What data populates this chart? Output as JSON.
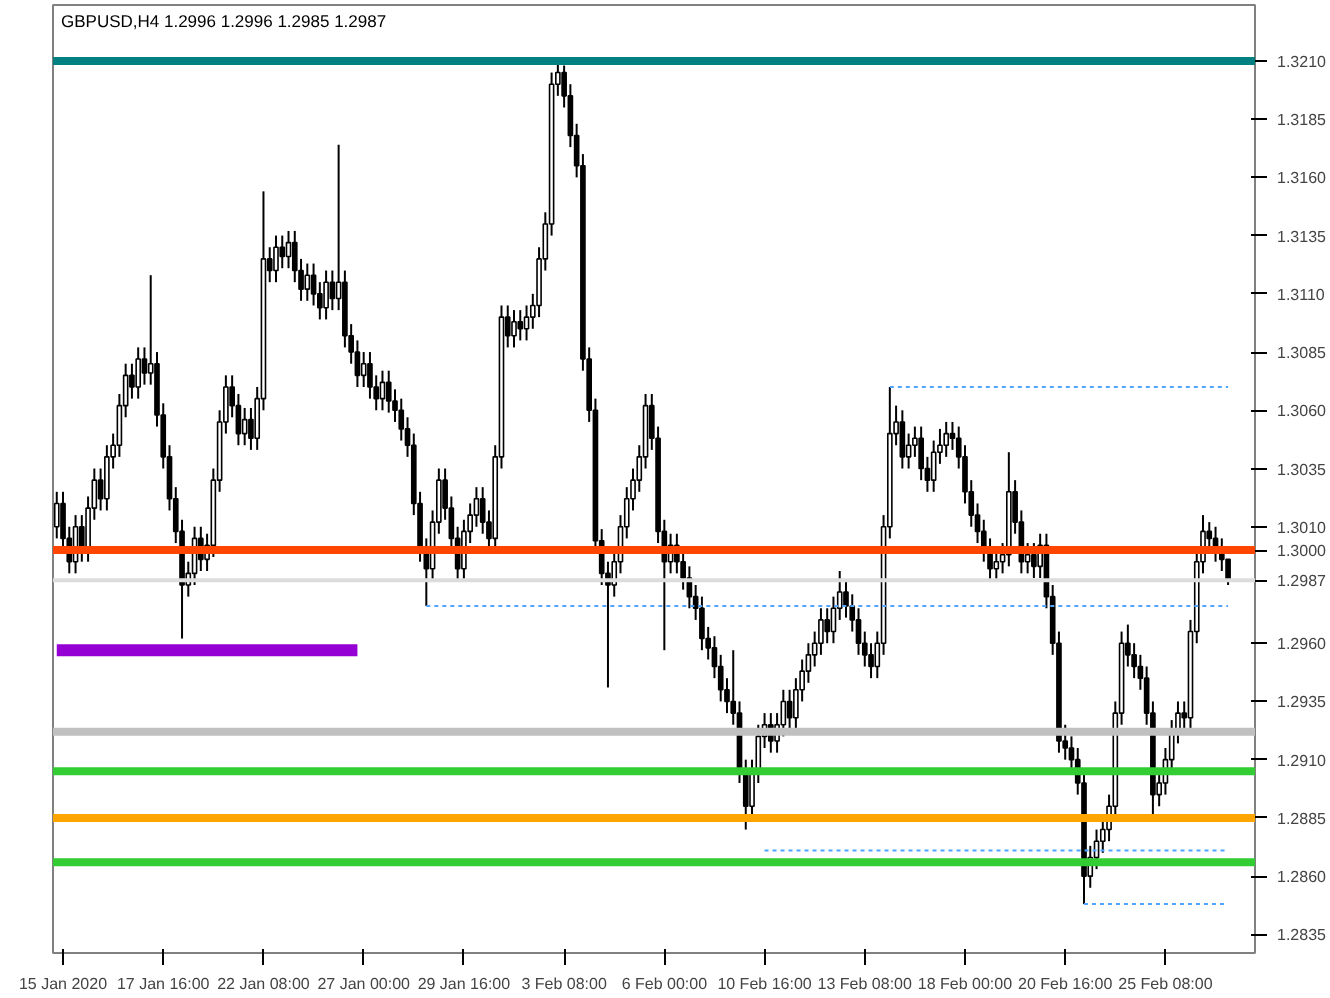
{
  "chart_data": {
    "type": "candlestick",
    "title": "GBPUSD,H4  1.2996 1.2996 1.2985 1.2987",
    "categories": [
      null,
      "15 Jan 2020",
      null,
      null,
      null,
      null,
      null,
      null,
      null,
      null,
      null,
      null,
      null,
      null,
      null,
      null,
      null,
      "17 Jan 16:00",
      null,
      null,
      null,
      null,
      null,
      null,
      null,
      null,
      null,
      null,
      null,
      null,
      null,
      null,
      null,
      "22 Jan 08:00",
      null,
      null,
      null,
      null,
      null,
      null,
      null,
      null,
      null,
      null,
      null,
      null,
      null,
      null,
      null,
      "27 Jan 00:00",
      null,
      null,
      null,
      null,
      null,
      null,
      null,
      null,
      null,
      null,
      null,
      null,
      null,
      null,
      null,
      "29 Jan 16:00",
      null,
      null,
      null,
      null,
      null,
      null,
      null,
      null,
      null,
      null,
      null,
      null,
      null,
      null,
      null,
      "3 Feb 08:00",
      null,
      null,
      null,
      null,
      null,
      null,
      null,
      null,
      null,
      null,
      null,
      null,
      null,
      null,
      null,
      "6 Feb 00:00",
      null,
      null,
      null,
      null,
      null,
      null,
      null,
      null,
      null,
      null,
      null,
      null,
      null,
      null,
      null,
      "10 Feb 16:00",
      null,
      null,
      null,
      null,
      null,
      null,
      null,
      null,
      null,
      null,
      null,
      null,
      null,
      null,
      null,
      "13 Feb 08:00",
      null,
      null,
      null,
      null,
      null,
      null,
      null,
      null,
      null,
      null,
      null,
      null,
      null,
      null,
      null,
      "18 Feb 00:00",
      null,
      null,
      null,
      null,
      null,
      null,
      null,
      null,
      null,
      null,
      null,
      null,
      null,
      null,
      null,
      "20 Feb 16:00",
      null,
      null,
      null,
      null,
      null,
      null,
      null,
      null,
      null,
      null,
      null,
      null,
      null,
      null,
      null,
      "25 Feb 08:00",
      null,
      null,
      null,
      null,
      null,
      null,
      null,
      null,
      null,
      null
    ],
    "ohlc": [
      [
        1.301,
        1.3025,
        1.3005,
        1.302
      ],
      [
        1.302,
        1.3025,
        1.3,
        1.3005
      ],
      [
        1.3005,
        1.301,
        1.299,
        1.2995
      ],
      [
        1.2995,
        1.3015,
        1.299,
        1.301
      ],
      [
        1.301,
        1.3015,
        1.2995,
        1.3
      ],
      [
        1.3,
        1.3023,
        1.2995,
        1.3018
      ],
      [
        1.3018,
        1.3035,
        1.3013,
        1.303
      ],
      [
        1.303,
        1.3035,
        1.3017,
        1.3022
      ],
      [
        1.3022,
        1.3045,
        1.3017,
        1.304
      ],
      [
        1.304,
        1.305,
        1.3035,
        1.3045
      ],
      [
        1.3045,
        1.3067,
        1.304,
        1.3062
      ],
      [
        1.3062,
        1.308,
        1.3057,
        1.3075
      ],
      [
        1.3075,
        1.308,
        1.3065,
        1.307
      ],
      [
        1.307,
        1.3087,
        1.3065,
        1.3082
      ],
      [
        1.3082,
        1.3087,
        1.3071,
        1.3076
      ],
      [
        1.3076,
        1.3118,
        1.3071,
        1.308
      ],
      [
        1.308,
        1.3085,
        1.3053,
        1.3058
      ],
      [
        1.3058,
        1.3063,
        1.3035,
        1.304
      ],
      [
        1.304,
        1.3045,
        1.3017,
        1.3022
      ],
      [
        1.3022,
        1.3027,
        1.3003,
        1.3008
      ],
      [
        1.3008,
        1.3013,
        1.2962,
        1.2985
      ],
      [
        1.2985,
        1.2995,
        1.298,
        1.299
      ],
      [
        1.299,
        1.301,
        1.2985,
        1.3005
      ],
      [
        1.3005,
        1.301,
        1.2991,
        1.2996
      ],
      [
        1.2996,
        1.3007,
        1.2991,
        1.3002
      ],
      [
        1.3002,
        1.3035,
        1.2997,
        1.303
      ],
      [
        1.303,
        1.306,
        1.3025,
        1.3055
      ],
      [
        1.3055,
        1.3075,
        1.305,
        1.307
      ],
      [
        1.307,
        1.3075,
        1.3057,
        1.3062
      ],
      [
        1.3062,
        1.3067,
        1.3045,
        1.305
      ],
      [
        1.305,
        1.3061,
        1.3045,
        1.3056
      ],
      [
        1.3056,
        1.3061,
        1.3043,
        1.3048
      ],
      [
        1.3048,
        1.307,
        1.3043,
        1.3065
      ],
      [
        1.3065,
        1.3154,
        1.306,
        1.3125
      ],
      [
        1.3125,
        1.313,
        1.3115,
        1.312
      ],
      [
        1.312,
        1.3135,
        1.3115,
        1.313
      ],
      [
        1.313,
        1.3135,
        1.3121,
        1.3126
      ],
      [
        1.3126,
        1.3137,
        1.3121,
        1.3132
      ],
      [
        1.3132,
        1.3137,
        1.3115,
        1.312
      ],
      [
        1.312,
        1.3125,
        1.3107,
        1.3112
      ],
      [
        1.3112,
        1.3123,
        1.3107,
        1.3118
      ],
      [
        1.3118,
        1.3123,
        1.3105,
        1.311
      ],
      [
        1.311,
        1.3115,
        1.3099,
        1.3104
      ],
      [
        1.3104,
        1.312,
        1.3099,
        1.3115
      ],
      [
        1.3115,
        1.312,
        1.3103,
        1.3108
      ],
      [
        1.3108,
        1.3174,
        1.3103,
        1.3115
      ],
      [
        1.3115,
        1.312,
        1.3087,
        1.3092
      ],
      [
        1.3092,
        1.3097,
        1.308,
        1.3085
      ],
      [
        1.3085,
        1.309,
        1.307,
        1.3075
      ],
      [
        1.3075,
        1.3085,
        1.307,
        1.308
      ],
      [
        1.308,
        1.3085,
        1.3065,
        1.307
      ],
      [
        1.307,
        1.3075,
        1.306,
        1.3065
      ],
      [
        1.3065,
        1.3077,
        1.306,
        1.3072
      ],
      [
        1.3072,
        1.3077,
        1.3059,
        1.3064
      ],
      [
        1.3064,
        1.3069,
        1.3055,
        1.306
      ],
      [
        1.306,
        1.3065,
        1.3047,
        1.3052
      ],
      [
        1.3052,
        1.3057,
        1.304,
        1.3045
      ],
      [
        1.3045,
        1.305,
        1.3015,
        1.302
      ],
      [
        1.302,
        1.3025,
        1.2995,
        1.3
      ],
      [
        1.3,
        1.3005,
        1.2976,
        1.2992
      ],
      [
        1.2992,
        1.3017,
        1.2987,
        1.3012
      ],
      [
        1.3012,
        1.3035,
        1.3007,
        1.303
      ],
      [
        1.303,
        1.3035,
        1.3013,
        1.3018
      ],
      [
        1.3018,
        1.3023,
        1.3,
        1.3005
      ],
      [
        1.3005,
        1.301,
        1.2987,
        1.2992
      ],
      [
        1.2992,
        1.3013,
        1.2987,
        1.3008
      ],
      [
        1.3008,
        1.302,
        1.3003,
        1.3015
      ],
      [
        1.3015,
        1.3027,
        1.301,
        1.3022
      ],
      [
        1.3022,
        1.3027,
        1.3007,
        1.3012
      ],
      [
        1.3012,
        1.3017,
        1.3,
        1.3005
      ],
      [
        1.3005,
        1.3045,
        1.3,
        1.304
      ],
      [
        1.304,
        1.3105,
        1.3035,
        1.31
      ],
      [
        1.31,
        1.3105,
        1.3087,
        1.3092
      ],
      [
        1.3092,
        1.3103,
        1.3087,
        1.3098
      ],
      [
        1.3098,
        1.3103,
        1.309,
        1.3095
      ],
      [
        1.3095,
        1.3105,
        1.309,
        1.31
      ],
      [
        1.31,
        1.311,
        1.3095,
        1.3105
      ],
      [
        1.3105,
        1.313,
        1.31,
        1.3125
      ],
      [
        1.3125,
        1.3145,
        1.312,
        1.314
      ],
      [
        1.314,
        1.3205,
        1.3135,
        1.32
      ],
      [
        1.32,
        1.321,
        1.3195,
        1.3205
      ],
      [
        1.3205,
        1.3208,
        1.319,
        1.3195
      ],
      [
        1.3195,
        1.32,
        1.3173,
        1.3178
      ],
      [
        1.3178,
        1.3183,
        1.316,
        1.3165
      ],
      [
        1.3165,
        1.317,
        1.3077,
        1.3082
      ],
      [
        1.3082,
        1.3087,
        1.3055,
        1.306
      ],
      [
        1.306,
        1.3065,
        1.2999,
        1.3004
      ],
      [
        1.3004,
        1.3009,
        1.2985,
        1.299
      ],
      [
        1.299,
        1.2995,
        1.2941,
        1.2985
      ],
      [
        1.2985,
        1.3,
        1.298,
        1.2995
      ],
      [
        1.2995,
        1.3015,
        1.299,
        1.301
      ],
      [
        1.301,
        1.3027,
        1.3005,
        1.3022
      ],
      [
        1.3022,
        1.3035,
        1.3017,
        1.303
      ],
      [
        1.303,
        1.3045,
        1.3025,
        1.304
      ],
      [
        1.304,
        1.3067,
        1.3035,
        1.3062
      ],
      [
        1.3062,
        1.3067,
        1.3043,
        1.3048
      ],
      [
        1.3048,
        1.3053,
        1.3003,
        1.3008
      ],
      [
        1.3008,
        1.3013,
        1.2957,
        1.2995
      ],
      [
        1.2995,
        1.3007,
        1.299,
        1.3002
      ],
      [
        1.3002,
        1.3007,
        1.299,
        1.2995
      ],
      [
        1.2995,
        1.3,
        1.2983,
        1.2988
      ],
      [
        1.2988,
        1.2993,
        1.2975,
        1.298
      ],
      [
        1.298,
        1.2985,
        1.297,
        1.2975
      ],
      [
        1.2975,
        1.298,
        1.2957,
        1.2962
      ],
      [
        1.2962,
        1.2967,
        1.2953,
        1.2958
      ],
      [
        1.2958,
        1.2963,
        1.2945,
        1.295
      ],
      [
        1.295,
        1.2955,
        1.2935,
        1.294
      ],
      [
        1.294,
        1.2945,
        1.293,
        1.2935
      ],
      [
        1.2935,
        1.2957,
        1.2925,
        1.293
      ],
      [
        1.293,
        1.2935,
        1.29,
        1.2905
      ],
      [
        1.2905,
        1.291,
        1.288,
        1.289
      ],
      [
        1.289,
        1.291,
        1.2885,
        1.2905
      ],
      [
        1.2905,
        1.2925,
        1.29,
        1.292
      ],
      [
        1.292,
        1.293,
        1.2915,
        1.2925
      ],
      [
        1.2925,
        1.293,
        1.2913,
        1.2918
      ],
      [
        1.2918,
        1.293,
        1.2913,
        1.2925
      ],
      [
        1.2925,
        1.294,
        1.292,
        1.2935
      ],
      [
        1.2935,
        1.294,
        1.2923,
        1.2928
      ],
      [
        1.2928,
        1.2945,
        1.2923,
        1.294
      ],
      [
        1.294,
        1.2953,
        1.2935,
        1.2948
      ],
      [
        1.2948,
        1.296,
        1.2943,
        1.2955
      ],
      [
        1.2955,
        1.2965,
        1.295,
        1.296
      ],
      [
        1.296,
        1.2975,
        1.2955,
        1.297
      ],
      [
        1.297,
        1.2975,
        1.296,
        1.2965
      ],
      [
        1.2965,
        1.298,
        1.296,
        1.2975
      ],
      [
        1.2975,
        1.2991,
        1.297,
        1.2982
      ],
      [
        1.2982,
        1.2987,
        1.2971,
        1.2976
      ],
      [
        1.2976,
        1.2981,
        1.2965,
        1.297
      ],
      [
        1.297,
        1.2975,
        1.2955,
        1.296
      ],
      [
        1.296,
        1.2965,
        1.295,
        1.2955
      ],
      [
        1.2955,
        1.296,
        1.2945,
        1.295
      ],
      [
        1.295,
        1.2965,
        1.2945,
        1.296
      ],
      [
        1.296,
        1.3015,
        1.2955,
        1.301
      ],
      [
        1.301,
        1.307,
        1.3005,
        1.305
      ],
      [
        1.305,
        1.3062,
        1.3045,
        1.3055
      ],
      [
        1.3055,
        1.306,
        1.3035,
        1.304
      ],
      [
        1.304,
        1.305,
        1.3035,
        1.3045
      ],
      [
        1.3045,
        1.3053,
        1.304,
        1.3048
      ],
      [
        1.3048,
        1.3053,
        1.303,
        1.3035
      ],
      [
        1.3035,
        1.304,
        1.3025,
        1.303
      ],
      [
        1.303,
        1.3047,
        1.3025,
        1.3042
      ],
      [
        1.3042,
        1.3052,
        1.3037,
        1.3045
      ],
      [
        1.3045,
        1.3055,
        1.304,
        1.305
      ],
      [
        1.305,
        1.3055,
        1.3043,
        1.3048
      ],
      [
        1.3048,
        1.3053,
        1.3035,
        1.304
      ],
      [
        1.304,
        1.3045,
        1.302,
        1.3025
      ],
      [
        1.3025,
        1.303,
        1.301,
        1.3015
      ],
      [
        1.3015,
        1.302,
        1.3003,
        1.3008
      ],
      [
        1.3008,
        1.3013,
        1.2995,
        1.3
      ],
      [
        1.3,
        1.3005,
        1.2987,
        1.2992
      ],
      [
        1.2992,
        1.3,
        1.2987,
        1.2995
      ],
      [
        1.2995,
        1.3003,
        1.299,
        1.2998
      ],
      [
        1.2998,
        1.3042,
        1.2993,
        1.3025
      ],
      [
        1.3025,
        1.303,
        1.3007,
        1.3012
      ],
      [
        1.3012,
        1.3017,
        1.299,
        1.2995
      ],
      [
        1.2995,
        1.3003,
        1.299,
        1.2998
      ],
      [
        1.2998,
        1.3003,
        1.2988,
        1.2993
      ],
      [
        1.2993,
        1.3007,
        1.2988,
        1.3002
      ],
      [
        1.3002,
        1.3007,
        1.2975,
        1.298
      ],
      [
        1.298,
        1.2985,
        1.2955,
        1.296
      ],
      [
        1.296,
        1.2965,
        1.2913,
        1.2918
      ],
      [
        1.2918,
        1.2925,
        1.291,
        1.2915
      ],
      [
        1.2915,
        1.292,
        1.2905,
        1.291
      ],
      [
        1.291,
        1.2915,
        1.2895,
        1.29
      ],
      [
        1.29,
        1.2905,
        1.2848,
        1.286
      ],
      [
        1.286,
        1.2873,
        1.2855,
        1.2868
      ],
      [
        1.2868,
        1.288,
        1.2863,
        1.2875
      ],
      [
        1.2875,
        1.2885,
        1.287,
        1.288
      ],
      [
        1.288,
        1.2895,
        1.2875,
        1.289
      ],
      [
        1.289,
        1.2935,
        1.2885,
        1.293
      ],
      [
        1.293,
        1.2965,
        1.2925,
        1.296
      ],
      [
        1.296,
        1.2968,
        1.295,
        1.2955
      ],
      [
        1.2955,
        1.296,
        1.2945,
        1.295
      ],
      [
        1.295,
        1.2955,
        1.294,
        1.2945
      ],
      [
        1.2945,
        1.295,
        1.2925,
        1.293
      ],
      [
        1.293,
        1.2935,
        1.2885,
        1.2895
      ],
      [
        1.2895,
        1.2905,
        1.289,
        1.29
      ],
      [
        1.29,
        1.2915,
        1.2895,
        1.291
      ],
      [
        1.291,
        1.2927,
        1.2905,
        1.2922
      ],
      [
        1.2922,
        1.2935,
        1.2917,
        1.293
      ],
      [
        1.293,
        1.2935,
        1.2923,
        1.2928
      ],
      [
        1.2928,
        1.297,
        1.2923,
        1.2965
      ],
      [
        1.2965,
        1.3,
        1.296,
        1.2995
      ],
      [
        1.2995,
        1.3015,
        1.299,
        1.3008
      ],
      [
        1.3008,
        1.3012,
        1.3,
        1.3005
      ],
      [
        1.3005,
        1.301,
        1.2995,
        1.3
      ],
      [
        1.3,
        1.3005,
        1.2991,
        1.2996
      ],
      [
        1.2996,
        1.2996,
        1.2985,
        1.2987
      ]
    ],
    "series": [
      {
        "type": "line",
        "color": "#9400d3",
        "line_style": "solid",
        "values": [
          1.2957,
          1.2957,
          1.2957,
          1.2957,
          1.2957,
          1.2957,
          1.2957,
          1.2957,
          1.2957,
          1.2957,
          1.2957,
          1.2957,
          1.2957,
          1.2957,
          1.2957,
          1.2957,
          1.2957,
          1.2957,
          1.2957,
          1.2957,
          1.2957,
          1.2957,
          1.2957,
          1.2957,
          1.2957,
          1.2957,
          1.2957,
          1.2957,
          1.2957,
          1.2957,
          1.2957,
          1.2957,
          1.2957,
          1.2957,
          1.2957,
          1.2957,
          1.2957,
          1.2957,
          1.2957,
          1.2957,
          1.2957,
          1.2957,
          1.2957,
          1.2957,
          1.2957,
          1.2957,
          1.2957,
          1.2957,
          1.2957,
          null,
          null,
          null,
          null,
          null,
          null,
          null,
          null,
          null,
          null,
          null,
          null,
          null,
          null,
          null,
          null,
          null,
          null,
          null,
          null,
          null,
          null,
          null,
          null,
          null,
          null,
          null,
          null,
          null,
          null,
          null,
          null,
          null,
          null,
          null,
          null,
          null,
          null,
          null,
          null,
          null,
          null,
          null,
          null,
          null,
          null,
          null,
          null,
          null,
          null,
          null,
          null,
          null,
          null,
          null,
          null,
          null,
          null,
          null,
          null,
          null,
          null,
          null,
          null,
          null,
          null,
          null,
          null,
          null,
          null,
          null,
          null,
          null,
          null,
          null,
          null,
          null,
          null,
          null,
          null,
          null,
          null,
          null,
          null,
          null,
          null,
          null,
          null,
          null,
          null,
          null,
          null,
          null,
          null,
          null,
          null,
          null,
          null,
          null,
          null,
          null,
          null,
          null,
          null,
          null,
          null,
          null,
          null,
          null,
          null,
          null,
          null,
          null,
          null,
          null,
          null,
          null,
          null,
          null,
          null,
          null,
          null,
          null,
          null,
          null,
          null,
          null,
          null,
          null,
          null,
          null,
          null,
          null,
          null,
          null,
          null,
          null,
          null,
          null
        ]
      },
      {
        "type": "line",
        "color": "#4da6ff",
        "line_style": "dashed",
        "values": [
          null,
          null,
          null,
          null,
          null,
          null,
          null,
          null,
          null,
          null,
          null,
          null,
          null,
          null,
          null,
          null,
          null,
          null,
          null,
          null,
          null,
          null,
          null,
          null,
          null,
          null,
          null,
          null,
          null,
          null,
          null,
          null,
          null,
          null,
          null,
          null,
          null,
          null,
          null,
          null,
          null,
          null,
          null,
          null,
          null,
          null,
          null,
          null,
          null,
          null,
          null,
          null,
          null,
          null,
          null,
          null,
          null,
          null,
          null,
          null,
          null,
          null,
          null,
          null,
          null,
          null,
          null,
          null,
          null,
          null,
          null,
          null,
          null,
          null,
          null,
          null,
          null,
          null,
          null,
          null,
          null,
          null,
          null,
          null,
          null,
          null,
          null,
          null,
          null,
          null,
          null,
          null,
          null,
          null,
          null,
          null,
          null,
          null,
          null,
          null,
          null,
          null,
          null,
          null,
          null,
          null,
          null,
          null,
          null,
          null,
          null,
          null,
          null,
          null,
          null,
          null,
          null,
          null,
          null,
          null,
          null,
          null,
          null,
          null,
          null,
          null,
          null,
          null,
          null,
          null,
          null,
          null,
          null,
          1.307,
          1.307,
          1.307,
          1.307,
          1.307,
          1.307,
          1.307,
          1.307,
          1.307,
          1.307,
          1.307,
          1.307,
          1.307,
          1.307,
          1.307,
          1.307,
          1.307,
          1.307,
          1.307,
          1.307,
          1.307,
          1.307,
          1.307,
          1.307,
          1.307,
          1.307,
          1.307,
          1.307,
          1.307,
          1.307,
          1.307,
          1.307,
          1.307,
          1.307,
          1.307,
          1.307,
          1.307,
          1.307,
          1.307,
          1.307,
          1.307,
          1.307,
          1.307,
          1.307,
          1.307,
          1.307,
          1.307,
          1.307,
          1.307,
          1.307,
          1.307,
          1.307,
          1.307,
          1.307,
          1.307
        ]
      },
      {
        "type": "line",
        "color": "#4da6ff",
        "line_style": "dashed",
        "values": [
          null,
          null,
          null,
          null,
          null,
          null,
          null,
          null,
          null,
          null,
          null,
          null,
          null,
          null,
          null,
          null,
          null,
          null,
          null,
          null,
          null,
          null,
          null,
          null,
          null,
          null,
          null,
          null,
          null,
          null,
          null,
          null,
          null,
          null,
          null,
          null,
          null,
          null,
          null,
          null,
          null,
          null,
          null,
          null,
          null,
          null,
          null,
          null,
          null,
          null,
          null,
          null,
          null,
          null,
          null,
          null,
          null,
          null,
          null,
          1.2976,
          1.2976,
          1.2976,
          1.2976,
          1.2976,
          1.2976,
          1.2976,
          1.2976,
          1.2976,
          1.2976,
          1.2976,
          1.2976,
          1.2976,
          1.2976,
          1.2976,
          1.2976,
          1.2976,
          1.2976,
          1.2976,
          1.2976,
          1.2976,
          1.2976,
          1.2976,
          1.2976,
          1.2976,
          1.2976,
          1.2976,
          1.2976,
          1.2976,
          1.2976,
          1.2976,
          1.2976,
          1.2976,
          1.2976,
          1.2976,
          1.2976,
          1.2976,
          1.2976,
          1.2976,
          1.2976,
          1.2976,
          1.2976,
          1.2976,
          1.2976,
          1.2976,
          1.2976,
          1.2976,
          1.2976,
          1.2976,
          1.2976,
          1.2976,
          1.2976,
          1.2976,
          1.2976,
          1.2976,
          1.2976,
          1.2976,
          1.2976,
          1.2976,
          1.2976,
          1.2976,
          1.2976,
          1.2976,
          1.2976,
          1.2976,
          1.2976,
          1.2976,
          1.2976,
          1.2976,
          1.2976,
          1.2976,
          1.2976,
          1.2976,
          1.2976,
          1.2976,
          1.2976,
          1.2976,
          1.2976,
          1.2976,
          1.2976,
          1.2976,
          1.2976,
          1.2976,
          1.2976,
          1.2976,
          1.2976,
          1.2976,
          1.2976,
          1.2976,
          1.2976,
          1.2976,
          1.2976,
          1.2976,
          1.2976,
          1.2976,
          1.2976,
          1.2976,
          1.2976,
          1.2976,
          1.2976,
          1.2976,
          1.2976,
          1.2976,
          1.2976,
          1.2976,
          1.2976,
          1.2976,
          1.2976,
          1.2976,
          1.2976,
          1.2976,
          1.2976,
          1.2976,
          1.2976,
          1.2976,
          1.2976,
          1.2976,
          1.2976,
          1.2976,
          1.2976,
          1.2976,
          1.2976,
          1.2976,
          1.2976,
          1.2976,
          1.2976,
          1.2976,
          1.2976,
          1.2976
        ]
      },
      {
        "type": "line",
        "color": "#4da6ff",
        "line_style": "dashed",
        "values": [
          null,
          null,
          null,
          null,
          null,
          null,
          null,
          null,
          null,
          null,
          null,
          null,
          null,
          null,
          null,
          null,
          null,
          null,
          null,
          null,
          null,
          null,
          null,
          null,
          null,
          null,
          null,
          null,
          null,
          null,
          null,
          null,
          null,
          null,
          null,
          null,
          null,
          null,
          null,
          null,
          null,
          null,
          null,
          null,
          null,
          null,
          null,
          null,
          null,
          null,
          null,
          null,
          null,
          null,
          null,
          null,
          null,
          null,
          null,
          null,
          null,
          null,
          null,
          null,
          null,
          null,
          null,
          null,
          null,
          null,
          null,
          null,
          null,
          null,
          null,
          null,
          null,
          null,
          null,
          null,
          null,
          null,
          null,
          null,
          null,
          null,
          null,
          null,
          null,
          null,
          null,
          null,
          null,
          null,
          null,
          null,
          null,
          null,
          null,
          null,
          null,
          null,
          null,
          null,
          null,
          null,
          null,
          null,
          null,
          null,
          null,
          null,
          null,
          1.2871,
          1.2871,
          1.2871,
          1.2871,
          1.2871,
          1.2871,
          1.2871,
          1.2871,
          1.2871,
          1.2871,
          1.2871,
          1.2871,
          1.2871,
          1.2871,
          1.2871,
          1.2871,
          1.2871,
          1.2871,
          1.2871,
          1.2871,
          1.2871,
          1.2871,
          1.2871,
          1.2871,
          1.2871,
          1.2871,
          1.2871,
          1.2871,
          1.2871,
          1.2871,
          1.2871,
          1.2871,
          1.2871,
          1.2871,
          1.2871,
          1.2871,
          1.2871,
          1.2871,
          1.2871,
          1.2871,
          1.2871,
          1.2871,
          1.2871,
          1.2871,
          1.2871,
          1.2871,
          1.2871,
          1.2871,
          1.2871,
          1.2871,
          1.2871,
          1.2871,
          1.2871,
          1.2871,
          1.2871,
          1.2871,
          1.2871,
          1.2871,
          1.2871,
          1.2871,
          1.2871,
          1.2871,
          1.2871,
          1.2871,
          1.2871,
          1.2871,
          1.2871,
          1.2871,
          1.2871,
          1.2871,
          1.2871,
          1.2871,
          1.2871,
          1.2871,
          1.2871
        ]
      },
      {
        "type": "line",
        "color": "#4da6ff",
        "line_style": "dashed",
        "values": [
          null,
          null,
          null,
          null,
          null,
          null,
          null,
          null,
          null,
          null,
          null,
          null,
          null,
          null,
          null,
          null,
          null,
          null,
          null,
          null,
          null,
          null,
          null,
          null,
          null,
          null,
          null,
          null,
          null,
          null,
          null,
          null,
          null,
          null,
          null,
          null,
          null,
          null,
          null,
          null,
          null,
          null,
          null,
          null,
          null,
          null,
          null,
          null,
          null,
          null,
          null,
          null,
          null,
          null,
          null,
          null,
          null,
          null,
          null,
          null,
          null,
          null,
          null,
          null,
          null,
          null,
          null,
          null,
          null,
          null,
          null,
          null,
          null,
          null,
          null,
          null,
          null,
          null,
          null,
          null,
          null,
          null,
          null,
          null,
          null,
          null,
          null,
          null,
          null,
          null,
          null,
          null,
          null,
          null,
          null,
          null,
          null,
          null,
          null,
          null,
          null,
          null,
          null,
          null,
          null,
          null,
          null,
          null,
          null,
          null,
          null,
          null,
          null,
          null,
          null,
          null,
          null,
          null,
          null,
          null,
          null,
          null,
          null,
          null,
          null,
          null,
          null,
          null,
          null,
          null,
          null,
          null,
          null,
          null,
          null,
          null,
          null,
          null,
          null,
          null,
          null,
          null,
          null,
          null,
          null,
          null,
          null,
          null,
          null,
          null,
          null,
          null,
          null,
          null,
          null,
          null,
          null,
          null,
          null,
          null,
          null,
          null,
          null,
          null,
          1.2848,
          1.2848,
          1.2848,
          1.2848,
          1.2848,
          1.2848,
          1.2848,
          1.2848,
          1.2848,
          1.2848,
          1.2848,
          1.2848,
          1.2848,
          1.2848,
          1.2848,
          1.2848,
          1.2848,
          1.2848,
          1.2848,
          1.2848,
          1.2848,
          1.2848,
          1.2848,
          1.2848
        ]
      }
    ],
    "ref_lines": [
      {
        "axis": "y",
        "value": 1.321,
        "color": "#008080"
      },
      {
        "axis": "y",
        "value": 1.2987,
        "color": "#dcdcdc",
        "label": "1.2987"
      },
      {
        "axis": "y",
        "value": 1.3,
        "color": "#ff4500",
        "label": "1.3000"
      },
      {
        "axis": "y",
        "value": 1.2922,
        "color": "#c0c0c0"
      },
      {
        "axis": "y",
        "value": 1.2905,
        "color": "#32cd32"
      },
      {
        "axis": "y",
        "value": 1.2885,
        "color": "#ffa500",
        "label": "1.2885"
      },
      {
        "axis": "y",
        "value": 1.2866,
        "color": "#32cd32"
      }
    ],
    "ylim": [
      1.2827,
      1.3234
    ],
    "yticks": [
      {
        "value": 1.2835,
        "label": "1.2835"
      },
      {
        "value": 1.286,
        "label": "1.2860"
      },
      {
        "value": 1.291,
        "label": "1.2910"
      },
      {
        "value": 1.2935,
        "label": "1.2935"
      },
      {
        "value": 1.296,
        "label": "1.2960"
      },
      {
        "value": 1.301,
        "label": "1.3010"
      },
      {
        "value": 1.3035,
        "label": "1.3035"
      },
      {
        "value": 1.306,
        "label": "1.3060"
      },
      {
        "value": 1.3085,
        "label": "1.3085"
      },
      {
        "value": 1.311,
        "label": "1.3110"
      },
      {
        "value": 1.3135,
        "label": "1.3135"
      },
      {
        "value": 1.316,
        "label": "1.3160"
      },
      {
        "value": 1.3185,
        "label": "1.3185"
      },
      {
        "value": 1.321,
        "label": "1.3210"
      }
    ],
    "grid": false
  }
}
